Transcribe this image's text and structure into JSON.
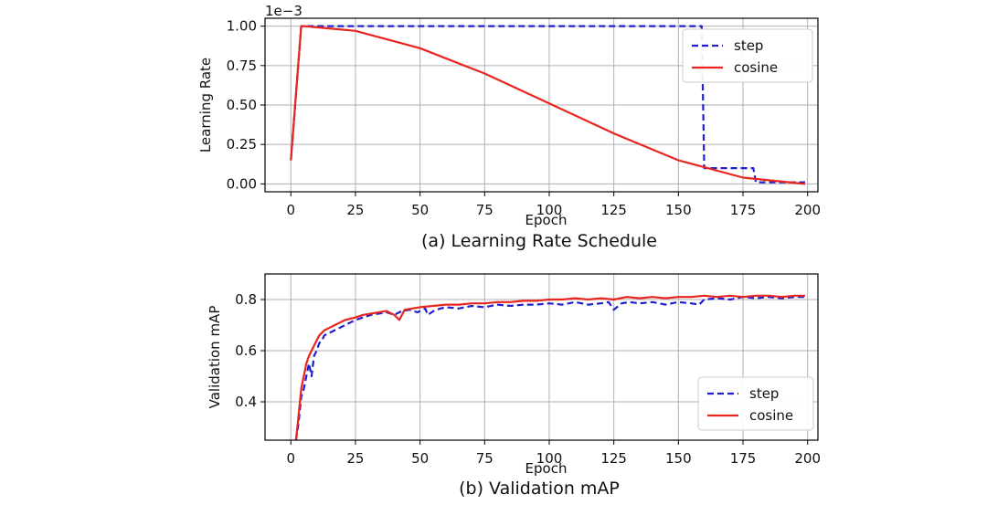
{
  "chart_data": [
    {
      "type": "line",
      "caption": "(a) Learning Rate Schedule",
      "xlabel": "Epoch",
      "ylabel": "Learning Rate",
      "scale_label": "1e−3",
      "xlim": [
        -10,
        204
      ],
      "ylim": [
        -0.05,
        1.05
      ],
      "xticks": [
        0,
        25,
        50,
        75,
        100,
        125,
        150,
        175,
        200
      ],
      "yticks": [
        "0.00",
        "0.25",
        "0.50",
        "0.75",
        "1.00"
      ],
      "grid": true,
      "legend_position": "top-right",
      "series": [
        {
          "name": "step",
          "color": "#1f1fcf",
          "style": "dashed",
          "x": [
            0,
            4,
            5,
            159,
            160,
            179,
            180,
            199
          ],
          "y": [
            0.15,
            1.0,
            1.0,
            1.0,
            0.1,
            0.1,
            0.01,
            0.01
          ]
        },
        {
          "name": "cosine",
          "color": "#e8251f",
          "style": "solid",
          "x": [
            0,
            4,
            5,
            25,
            50,
            75,
            100,
            125,
            150,
            175,
            199
          ],
          "y": [
            0.15,
            1.0,
            1.0,
            0.97,
            0.86,
            0.7,
            0.51,
            0.32,
            0.15,
            0.04,
            0.0
          ]
        }
      ]
    },
    {
      "type": "line",
      "caption": "(b) Validation mAP",
      "xlabel": "Epoch",
      "ylabel": "Validation mAP",
      "xlim": [
        -10,
        204
      ],
      "ylim": [
        0.25,
        0.9
      ],
      "xticks": [
        0,
        25,
        50,
        75,
        100,
        125,
        150,
        175,
        200
      ],
      "yticks": [
        "0.4",
        "0.6",
        "0.8"
      ],
      "grid": true,
      "legend_position": "bottom-right",
      "series": [
        {
          "name": "step",
          "color": "#1f1fcf",
          "style": "dashed",
          "x": [
            2,
            3,
            4,
            5,
            6,
            7,
            8,
            9,
            10,
            11,
            12,
            13,
            15,
            17,
            19,
            21,
            23,
            25,
            28,
            31,
            34,
            37,
            40,
            43,
            46,
            49,
            52,
            53,
            56,
            60,
            65,
            70,
            75,
            80,
            85,
            90,
            95,
            100,
            105,
            110,
            115,
            120,
            123,
            125,
            128,
            131,
            135,
            140,
            145,
            150,
            155,
            158,
            160,
            165,
            170,
            175,
            180,
            185,
            190,
            195,
            199
          ],
          "y": [
            0.25,
            0.32,
            0.42,
            0.45,
            0.5,
            0.55,
            0.5,
            0.58,
            0.6,
            0.63,
            0.64,
            0.66,
            0.67,
            0.68,
            0.69,
            0.7,
            0.71,
            0.72,
            0.73,
            0.74,
            0.745,
            0.75,
            0.74,
            0.755,
            0.76,
            0.75,
            0.765,
            0.74,
            0.76,
            0.77,
            0.765,
            0.775,
            0.77,
            0.78,
            0.775,
            0.78,
            0.78,
            0.785,
            0.78,
            0.79,
            0.78,
            0.785,
            0.79,
            0.76,
            0.785,
            0.79,
            0.785,
            0.79,
            0.78,
            0.79,
            0.785,
            0.78,
            0.8,
            0.805,
            0.8,
            0.81,
            0.805,
            0.81,
            0.805,
            0.81,
            0.81
          ]
        },
        {
          "name": "cosine",
          "color": "#e8251f",
          "style": "solid",
          "x": [
            2,
            3,
            4,
            5,
            6,
            7,
            8,
            9,
            10,
            11,
            12,
            13,
            15,
            17,
            19,
            21,
            23,
            25,
            28,
            31,
            34,
            37,
            40,
            42,
            44,
            47,
            50,
            55,
            60,
            65,
            70,
            75,
            80,
            85,
            90,
            95,
            100,
            105,
            110,
            115,
            120,
            125,
            130,
            135,
            140,
            145,
            150,
            155,
            160,
            165,
            170,
            175,
            180,
            185,
            190,
            195,
            199
          ],
          "y": [
            0.25,
            0.35,
            0.45,
            0.5,
            0.55,
            0.58,
            0.6,
            0.62,
            0.64,
            0.66,
            0.67,
            0.68,
            0.69,
            0.7,
            0.71,
            0.72,
            0.725,
            0.73,
            0.74,
            0.745,
            0.75,
            0.755,
            0.74,
            0.72,
            0.76,
            0.765,
            0.77,
            0.775,
            0.78,
            0.78,
            0.785,
            0.785,
            0.79,
            0.79,
            0.795,
            0.795,
            0.8,
            0.8,
            0.805,
            0.8,
            0.805,
            0.8,
            0.81,
            0.805,
            0.81,
            0.805,
            0.81,
            0.81,
            0.815,
            0.81,
            0.815,
            0.81,
            0.815,
            0.815,
            0.81,
            0.815,
            0.815
          ]
        }
      ]
    }
  ]
}
